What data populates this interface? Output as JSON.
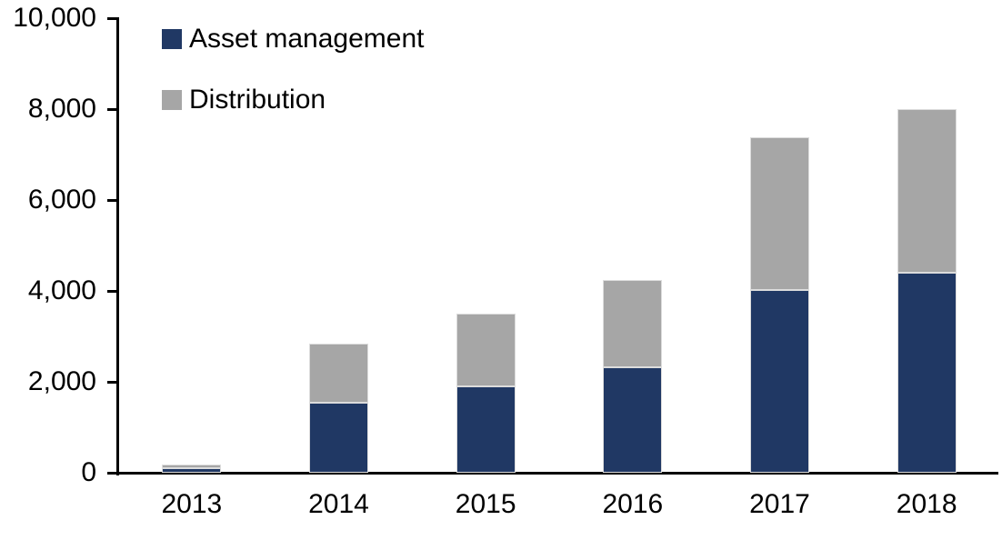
{
  "chart_data": {
    "type": "bar",
    "stacked": true,
    "title": "",
    "xlabel": "",
    "ylabel": "",
    "categories": [
      "2013",
      "2014",
      "2015",
      "2016",
      "2017",
      "2018"
    ],
    "series": [
      {
        "name": "Asset management",
        "color": "#203864",
        "values": [
          100,
          1550,
          1900,
          2320,
          4030,
          4400
        ]
      },
      {
        "name": "Distribution",
        "color": "#A6A6A6",
        "values": [
          90,
          1300,
          1600,
          1930,
          3350,
          3600
        ]
      }
    ],
    "totals": [
      190,
      2850,
      3500,
      4250,
      7380,
      8000
    ],
    "ylim": [
      0,
      10000
    ],
    "yticks": [
      0,
      2000,
      4000,
      6000,
      8000,
      10000
    ],
    "ytick_labels": [
      "0",
      "2,000",
      "4,000",
      "6,000",
      "8,000",
      "10,000"
    ],
    "grid": false,
    "legend_position": "top-left-inside",
    "axis_color": "#000000",
    "background_color": "#FFFFFF"
  }
}
